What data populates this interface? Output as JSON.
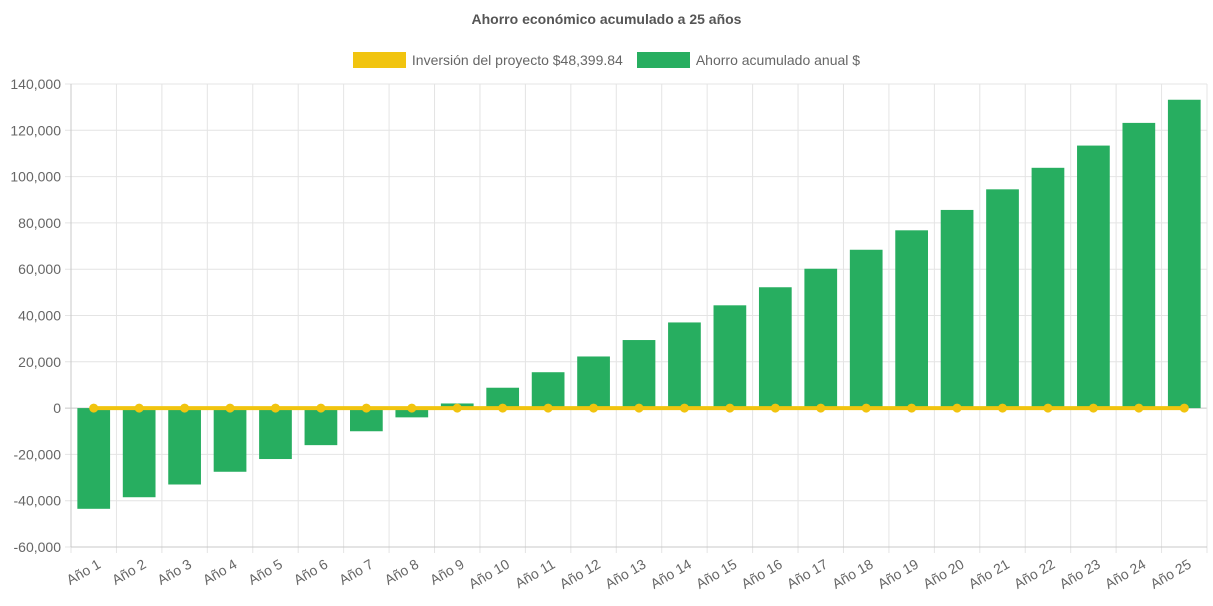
{
  "chart_data": {
    "type": "bar",
    "title": "Ahorro económico acumulado a 25 años",
    "categories": [
      "Año 1",
      "Año 2",
      "Año 3",
      "Año 4",
      "Año 5",
      "Año 6",
      "Año 7",
      "Año 8",
      "Año 9",
      "Año 10",
      "Año 11",
      "Año 12",
      "Año 13",
      "Año 14",
      "Año 15",
      "Año 16",
      "Año 17",
      "Año 18",
      "Año 19",
      "Año 20",
      "Año 21",
      "Año 22",
      "Año 23",
      "Año 24",
      "Año 25"
    ],
    "series": [
      {
        "name": "Inversión del proyecto $48,399.84",
        "type": "line",
        "color": "#f1c40f",
        "values": [
          0,
          0,
          0,
          0,
          0,
          0,
          0,
          0,
          0,
          0,
          0,
          0,
          0,
          0,
          0,
          0,
          0,
          0,
          0,
          0,
          0,
          0,
          0,
          0,
          0
        ]
      },
      {
        "name": "Ahorro acumulado anual $",
        "type": "bar",
        "color": "#27ae60",
        "values": [
          -43500,
          -38500,
          -33000,
          -27500,
          -22000,
          -16000,
          -10000,
          -4000,
          2000,
          8800,
          15500,
          22300,
          29400,
          37000,
          44400,
          52200,
          60200,
          68400,
          76800,
          85600,
          94500,
          103800,
          113400,
          123200,
          133200
        ]
      }
    ],
    "ylim": [
      -60000,
      140000
    ],
    "yticks": [
      "140,000",
      "120,000",
      "100,000",
      "80,000",
      "60,000",
      "40,000",
      "20,000",
      "0",
      "-20,000",
      "-40,000",
      "-60,000"
    ],
    "ytick_values": [
      140000,
      120000,
      100000,
      80000,
      60000,
      40000,
      20000,
      0,
      -20000,
      -40000,
      -60000
    ],
    "grid": true,
    "legend_position": "top"
  }
}
